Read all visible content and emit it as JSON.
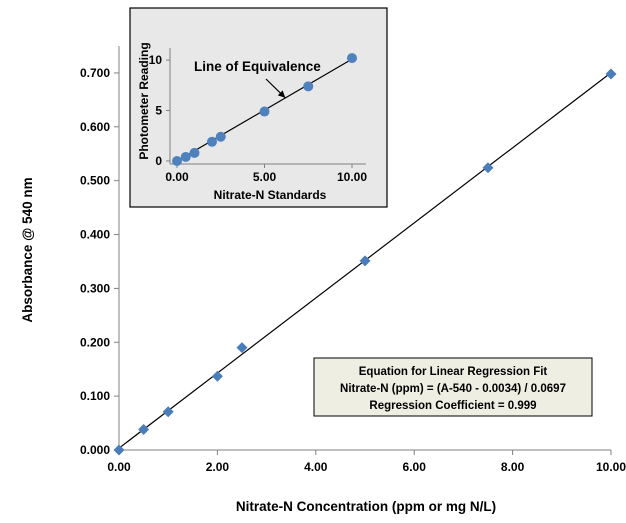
{
  "chart_data": [
    {
      "type": "scatter",
      "title": "",
      "xlabel": "Nitrate-N Concentration (ppm or mg N/L)",
      "ylabel": "Absorbance @ 540 nm",
      "xlim": [
        0,
        10
      ],
      "ylim": [
        0,
        0.75
      ],
      "x_ticks": [
        "0.00",
        "2.00",
        "4.00",
        "6.00",
        "8.00",
        "10.00"
      ],
      "x_tick_values": [
        0,
        2,
        4,
        6,
        8,
        10
      ],
      "y_ticks": [
        "0.000",
        "0.100",
        "0.200",
        "0.300",
        "0.400",
        "0.500",
        "0.600",
        "0.700"
      ],
      "y_tick_values": [
        0,
        0.1,
        0.2,
        0.3,
        0.4,
        0.5,
        0.6,
        0.7
      ],
      "grid": false,
      "series": [
        {
          "marker": "diamond",
          "color": "#4a7ebb",
          "x": [
            0,
            0.5,
            1,
            2,
            2.5,
            5,
            7.5,
            10
          ],
          "y": [
            0.0,
            0.038,
            0.071,
            0.137,
            0.19,
            0.351,
            0.524,
            0.698
          ]
        }
      ],
      "trendline": {
        "slope": 0.0697,
        "intercept": 0.0034,
        "x_range": [
          0,
          10
        ],
        "color": "#000000"
      },
      "annotation_box": {
        "lines": [
          "Equation for Linear Regression Fit",
          "Nitrate-N (ppm) = (A-540 - 0.0034) / 0.0697",
          "Regression Coefficient = 0.999"
        ],
        "background": "#eeeee2"
      }
    },
    {
      "type": "scatter",
      "title": "",
      "xlabel": "Nitrate-N Standards",
      "ylabel": "Photometer Reading",
      "xlim": [
        -0.4,
        10.8
      ],
      "ylim": [
        -0.3,
        11.2
      ],
      "x_ticks": [
        "0.00",
        "5.00",
        "10.00"
      ],
      "x_tick_values": [
        0,
        5,
        10
      ],
      "y_ticks": [
        "0",
        "5",
        "10"
      ],
      "y_tick_values": [
        0,
        5,
        10
      ],
      "grid": false,
      "background": "#e8e8e8",
      "series": [
        {
          "marker": "circle",
          "color": "#4f81bd",
          "x": [
            0,
            0.5,
            1,
            2,
            2.5,
            5,
            7.5,
            10
          ],
          "y": [
            0,
            0.4,
            0.8,
            1.9,
            2.4,
            4.9,
            7.4,
            10.2
          ]
        }
      ],
      "trendline": {
        "x": [
          0,
          10
        ],
        "y": [
          0,
          10.1
        ],
        "color": "#000000"
      },
      "annotation": "Line of Equivalence"
    }
  ]
}
